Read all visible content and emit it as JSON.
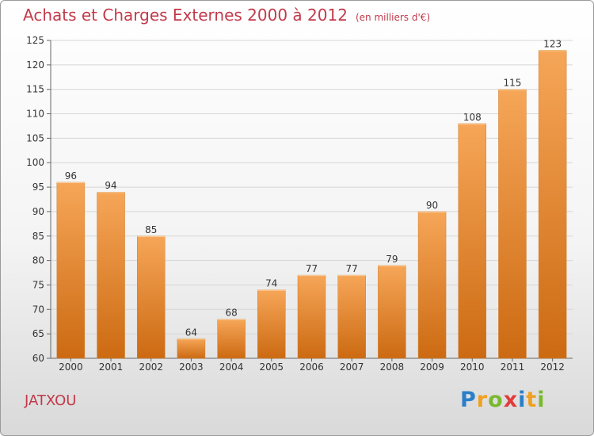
{
  "title": "Achats et Charges Externes 2000 à 2012",
  "unit": "(en milliers d'€)",
  "commune": "JATXOU",
  "logo": {
    "text": "Proxiti",
    "letters": [
      {
        "ch": "P",
        "color": "#2a7fc9"
      },
      {
        "ch": "r",
        "color": "#f0a020"
      },
      {
        "ch": "o",
        "color": "#7ab82e"
      },
      {
        "ch": "x",
        "color": "#e23b3b"
      },
      {
        "ch": "i",
        "color": "#2a7fc9"
      },
      {
        "ch": "t",
        "color": "#f0a020"
      },
      {
        "ch": "i",
        "color": "#7ab82e"
      }
    ]
  },
  "chart_data": {
    "type": "bar",
    "categories": [
      "2000",
      "2001",
      "2002",
      "2003",
      "2004",
      "2005",
      "2006",
      "2007",
      "2008",
      "2009",
      "2010",
      "2011",
      "2012"
    ],
    "values": [
      96,
      94,
      85,
      64,
      68,
      74,
      77,
      77,
      79,
      90,
      108,
      115,
      123
    ],
    "ylim": [
      60,
      125
    ],
    "yticks": [
      60,
      65,
      70,
      75,
      80,
      85,
      90,
      95,
      100,
      105,
      110,
      115,
      120,
      125
    ],
    "grid": true,
    "bar_color": "#f0a050",
    "title": "Achats et Charges Externes 2000 à 2012",
    "xlabel": "",
    "ylabel": ""
  }
}
